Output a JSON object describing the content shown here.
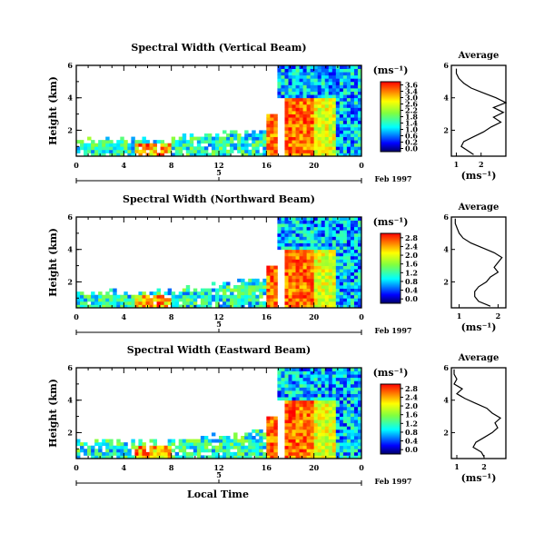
{
  "chart_data": [
    {
      "type": "heatmap",
      "title": "Spectral Width (Vertical Beam)",
      "ylabel": "Height (km)",
      "x_ticks": [
        "0",
        "4",
        "8",
        "12",
        "16",
        "20",
        "0"
      ],
      "y_ticks": [
        "6",
        "4",
        "2"
      ],
      "xlim": [
        0,
        24
      ],
      "ylim": [
        0.4,
        6
      ],
      "date_ticks": [
        "5"
      ],
      "date_label": "Feb 1997",
      "colorbar_unit": "(ms⁻¹)",
      "colorbar_ticks": [
        "3.6",
        "3.4",
        "3.0",
        "2.6",
        "2.2",
        "1.8",
        "1.4",
        "1.0",
        "0.6",
        "0.2",
        "0.0"
      ],
      "profile_title": "Average",
      "profile_xlabel": "(ms⁻¹)",
      "profile_x_ticks": [
        "1",
        "2"
      ],
      "profile_y_ticks": [
        "6",
        "4",
        "2"
      ],
      "profile_xlim": [
        0.8,
        3.0
      ],
      "profile_height": [
        0.5,
        0.8,
        1.0,
        1.3,
        1.6,
        1.9,
        2.2,
        2.5,
        2.8,
        3.1,
        3.4,
        3.7,
        4.0,
        4.3,
        4.6,
        4.9,
        5.2,
        5.5,
        5.8
      ],
      "profile_value": [
        1.7,
        1.4,
        1.2,
        1.3,
        1.7,
        2.1,
        2.4,
        2.8,
        2.5,
        2.9,
        2.5,
        3.0,
        2.6,
        2.1,
        1.6,
        1.3,
        1.1,
        1.0,
        1.0
      ]
    },
    {
      "type": "heatmap",
      "title": "Spectral Width (Northward Beam)",
      "ylabel": "Height (km)",
      "x_ticks": [
        "0",
        "4",
        "8",
        "12",
        "16",
        "20",
        "0"
      ],
      "y_ticks": [
        "6",
        "4",
        "2"
      ],
      "xlim": [
        0,
        24
      ],
      "ylim": [
        0.4,
        6
      ],
      "date_ticks": [
        "5"
      ],
      "date_label": "Feb 1997",
      "colorbar_unit": "(ms⁻¹)",
      "colorbar_ticks": [
        "2.8",
        "2.4",
        "2.0",
        "1.6",
        "1.2",
        "0.8",
        "0.4",
        "0.0"
      ],
      "profile_title": "Average",
      "profile_xlabel": "(ms⁻¹)",
      "profile_x_ticks": [
        "1",
        "2"
      ],
      "profile_y_ticks": [
        "6",
        "4",
        "2"
      ],
      "profile_xlim": [
        0.8,
        2.2
      ],
      "profile_height": [
        0.5,
        0.8,
        1.1,
        1.4,
        1.7,
        2.0,
        2.3,
        2.6,
        2.9,
        3.2,
        3.5,
        3.8,
        4.1,
        4.4,
        4.7,
        5.0,
        5.3,
        5.6,
        5.9
      ],
      "profile_value": [
        1.8,
        1.5,
        1.4,
        1.4,
        1.5,
        1.7,
        1.8,
        2.0,
        1.9,
        2.0,
        2.1,
        1.9,
        1.6,
        1.3,
        1.1,
        1.0,
        0.95,
        0.9,
        0.9
      ]
    },
    {
      "type": "heatmap",
      "title": "Spectral Width (Eastward Beam)",
      "ylabel": "Height (km)",
      "xlabel": "Local Time",
      "x_ticks": [
        "0",
        "4",
        "8",
        "12",
        "16",
        "20",
        "0"
      ],
      "y_ticks": [
        "6",
        "4",
        "2"
      ],
      "xlim": [
        0,
        24
      ],
      "ylim": [
        0.4,
        6
      ],
      "date_ticks": [
        "5"
      ],
      "date_label": "Feb 1997",
      "colorbar_unit": "(ms⁻¹)",
      "colorbar_ticks": [
        "2.8",
        "2.4",
        "2.0",
        "1.6",
        "1.2",
        "0.8",
        "0.4",
        "0.0"
      ],
      "profile_title": "Average",
      "profile_xlabel": "(ms⁻¹)",
      "profile_x_ticks": [
        "1",
        "2"
      ],
      "profile_y_ticks": [
        "6",
        "4",
        "2"
      ],
      "profile_xlim": [
        0.8,
        2.8
      ],
      "profile_height": [
        0.5,
        0.8,
        1.1,
        1.4,
        1.7,
        2.0,
        2.3,
        2.6,
        2.9,
        3.2,
        3.5,
        3.8,
        4.1,
        4.4,
        4.7,
        5.0,
        5.3,
        5.6,
        5.9
      ],
      "profile_value": [
        2.0,
        1.9,
        1.6,
        1.7,
        2.0,
        2.3,
        2.5,
        2.4,
        2.6,
        2.3,
        2.1,
        1.7,
        1.3,
        1.0,
        1.2,
        0.9,
        1.0,
        0.9,
        0.9
      ]
    }
  ]
}
